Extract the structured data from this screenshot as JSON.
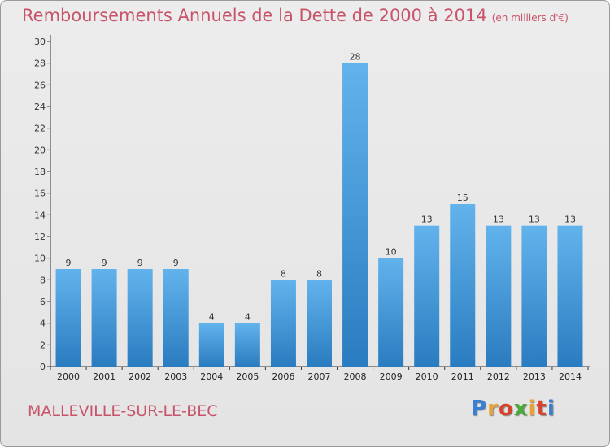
{
  "header": {
    "title": "Remboursements Annuels de la Dette de 2000 à 2014",
    "unit": "(en milliers d'€)"
  },
  "footer": {
    "commune": "MALLEVILLE-SUR-LE-BEC",
    "logo_text": "Proxiti",
    "logo_colors": [
      "#3a7fd0",
      "#e7a33a",
      "#d7432a",
      "#4aa83c",
      "#e7a33a",
      "#d7432a",
      "#3a7fd0"
    ]
  },
  "colors": {
    "bar_top": "#62b3ec",
    "bar_bottom": "#2a7cc0",
    "accent": "#c8546a"
  },
  "chart_data": {
    "type": "bar",
    "categories": [
      "2000",
      "2001",
      "2002",
      "2003",
      "2004",
      "2005",
      "2006",
      "2007",
      "2008",
      "2009",
      "2010",
      "2011",
      "2012",
      "2013",
      "2014"
    ],
    "values": [
      9,
      9,
      9,
      9,
      4,
      4,
      8,
      8,
      28,
      10,
      13,
      15,
      13,
      13,
      13
    ],
    "ylim": [
      0,
      30
    ],
    "yticks": [
      0,
      2,
      4,
      6,
      8,
      10,
      12,
      14,
      16,
      18,
      20,
      22,
      24,
      26,
      28,
      30
    ],
    "grid": false
  }
}
